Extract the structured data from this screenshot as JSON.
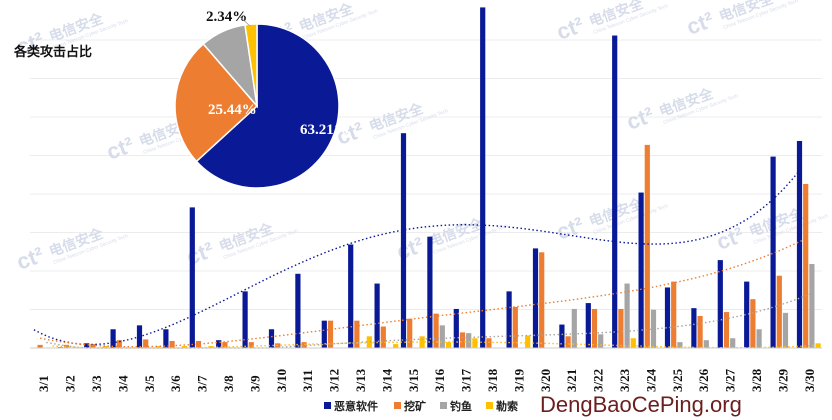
{
  "chart_data": [
    {
      "type": "bar",
      "categories": [
        "3/1",
        "3/2",
        "3/3",
        "3/4",
        "3/5",
        "3/6",
        "3/7",
        "3/8",
        "3/9",
        "3/10",
        "3/11",
        "3/12",
        "3/13",
        "3/14",
        "3/15",
        "3/16",
        "3/17",
        "3/18",
        "3/19",
        "3/20",
        "3/21",
        "3/22",
        "3/23",
        "3/24",
        "3/25",
        "3/26",
        "3/27",
        "3/28",
        "3/29",
        "3/30"
      ],
      "ylim": [
        0,
        850
      ],
      "grid": true,
      "legend_position": "bottom",
      "series": [
        {
          "name": "恶意软件",
          "color": "#0a1a96",
          "values": [
            0,
            2,
            12,
            48,
            58,
            48,
            360,
            20,
            145,
            48,
            190,
            70,
            265,
            165,
            550,
            285,
            100,
            872,
            145,
            255,
            60,
            115,
            800,
            398,
            155,
            102,
            225,
            170,
            490,
            530
          ]
        },
        {
          "name": "挖矿",
          "color": "#ed7d31",
          "values": [
            8,
            8,
            10,
            20,
            22,
            18,
            18,
            15,
            15,
            12,
            15,
            70,
            70,
            55,
            75,
            88,
            40,
            25,
            105,
            245,
            30,
            100,
            100,
            520,
            170,
            82,
            92,
            125,
            185,
            420
          ]
        },
        {
          "name": "钓鱼",
          "color": "#a5a5a5",
          "values": [
            0,
            0,
            0,
            0,
            0,
            0,
            0,
            0,
            0,
            0,
            0,
            0,
            0,
            0,
            0,
            58,
            38,
            0,
            0,
            0,
            100,
            35,
            165,
            98,
            15,
            20,
            25,
            48,
            90,
            215
          ]
        },
        {
          "name": "勒索",
          "color": "#ffc000",
          "values": [
            0,
            0,
            5,
            0,
            5,
            5,
            5,
            0,
            0,
            0,
            0,
            0,
            30,
            10,
            30,
            15,
            25,
            0,
            32,
            0,
            0,
            0,
            25,
            0,
            0,
            0,
            0,
            0,
            0,
            12
          ]
        }
      ],
      "trendlines": true
    },
    {
      "type": "pie",
      "title": "各类攻击占比",
      "slices": [
        {
          "name": "恶意软件",
          "value": 63.21,
          "label": "63.21%",
          "color": "#0a1a96"
        },
        {
          "name": "挖矿",
          "value": 25.44,
          "label": "25.44%",
          "color": "#ed7d31"
        },
        {
          "name": "钓鱼",
          "value": 9.01,
          "label": "",
          "color": "#a5a5a5"
        },
        {
          "name": "勒索",
          "value": 2.34,
          "label": "2.34%",
          "color": "#ffc000"
        }
      ]
    }
  ],
  "watermark": {
    "brand": "电信安全",
    "sub": "China Telecom Cyber Security Tech"
  },
  "site_watermark": "DengBaoCePing.org"
}
